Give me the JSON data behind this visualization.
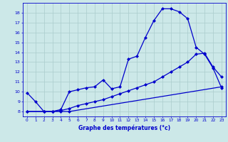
{
  "xlabel": "Graphe des températures (°c)",
  "background_color": "#cce8e8",
  "grid_color": "#aacccc",
  "line_color": "#0000cc",
  "marker": "D",
  "markersize": 2,
  "linewidth": 0.9,
  "ylim": [
    7.5,
    19.0
  ],
  "xlim": [
    -0.5,
    23.5
  ],
  "yticks": [
    8,
    9,
    10,
    11,
    12,
    13,
    14,
    15,
    16,
    17,
    18
  ],
  "xticks": [
    0,
    1,
    2,
    3,
    4,
    5,
    6,
    7,
    8,
    9,
    10,
    11,
    12,
    13,
    14,
    15,
    16,
    17,
    18,
    19,
    20,
    21,
    22,
    23
  ],
  "line1_x": [
    0,
    1,
    2,
    3,
    4,
    5,
    6,
    7,
    8,
    9,
    10,
    11,
    12,
    13,
    14,
    15,
    16,
    17,
    18,
    19,
    20,
    21,
    22,
    23
  ],
  "line1_y": [
    9.9,
    9.0,
    8.0,
    8.0,
    8.2,
    10.0,
    10.2,
    10.4,
    10.5,
    11.2,
    10.3,
    10.5,
    13.3,
    13.6,
    15.5,
    17.2,
    18.4,
    18.4,
    18.1,
    17.4,
    14.5,
    13.8,
    12.4,
    10.4
  ],
  "line2_x": [
    0,
    2,
    3,
    4,
    5,
    23
  ],
  "line2_y": [
    8.0,
    8.0,
    8.0,
    8.0,
    8.0,
    10.5
  ],
  "line3_x": [
    0,
    2,
    3,
    4,
    5,
    6,
    7,
    8,
    9,
    10,
    11,
    12,
    13,
    14,
    15,
    16,
    17,
    18,
    19,
    20,
    21,
    22,
    23
  ],
  "line3_y": [
    8.0,
    8.0,
    8.0,
    8.1,
    8.3,
    8.6,
    8.8,
    9.0,
    9.2,
    9.5,
    9.8,
    10.1,
    10.4,
    10.7,
    11.0,
    11.5,
    12.0,
    12.5,
    13.0,
    13.8,
    13.9,
    12.5,
    11.5
  ]
}
